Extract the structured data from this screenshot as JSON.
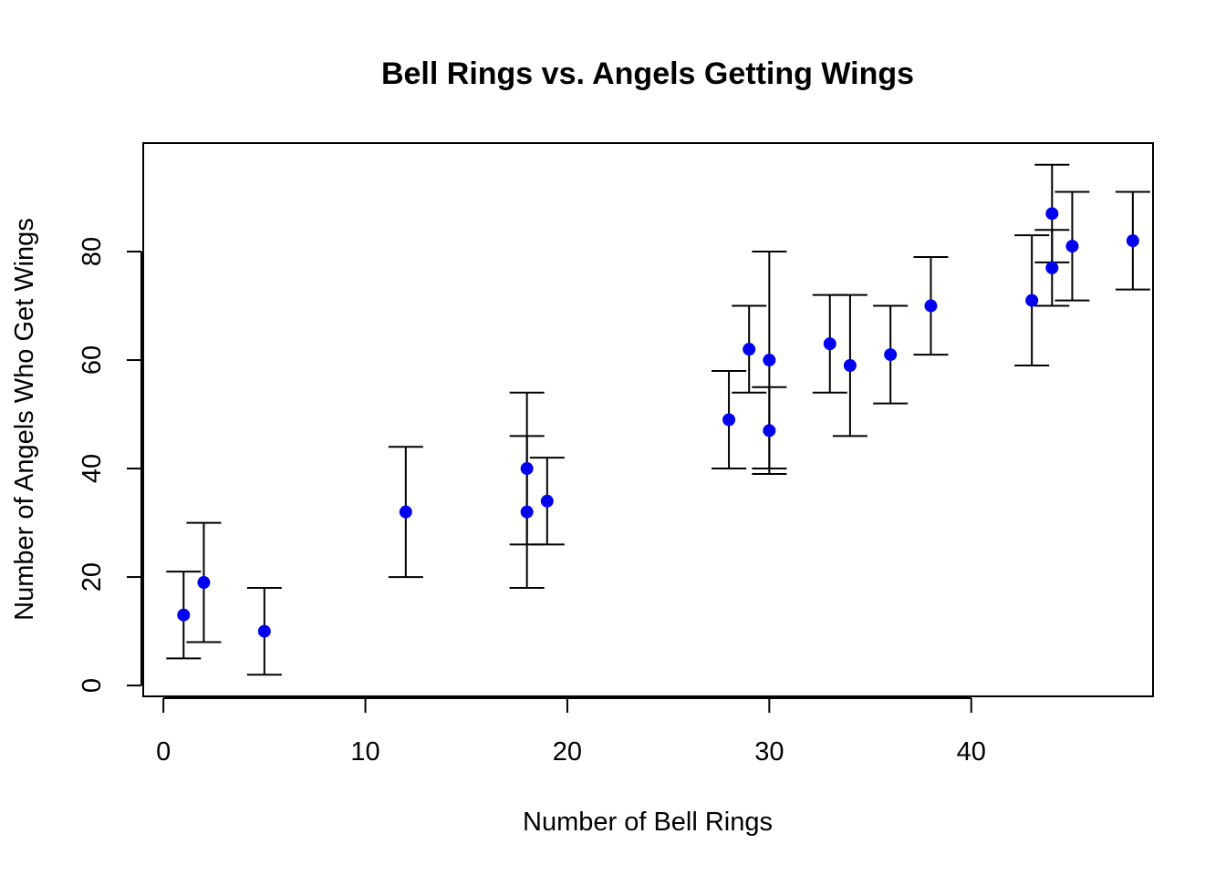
{
  "chart_data": {
    "type": "scatter",
    "title": "Bell Rings vs. Angels Getting Wings",
    "xlabel": "Number of Bell Rings",
    "ylabel": "Number of Angels Who Get Wings",
    "xlim": [
      -1,
      49
    ],
    "ylim": [
      -2,
      100
    ],
    "x_ticks": [
      0,
      10,
      20,
      30,
      40
    ],
    "y_ticks": [
      0,
      20,
      40,
      60,
      80
    ],
    "grid": false,
    "legend": "none",
    "point_color": "#0000ee",
    "error_bar_color": "#000000",
    "points": [
      {
        "x": 1,
        "y": 13,
        "lower": 5,
        "upper": 21
      },
      {
        "x": 2,
        "y": 19,
        "lower": 8,
        "upper": 30
      },
      {
        "x": 5,
        "y": 10,
        "lower": 2,
        "upper": 18
      },
      {
        "x": 12,
        "y": 32,
        "lower": 20,
        "upper": 44
      },
      {
        "x": 18,
        "y": 40,
        "lower": 26,
        "upper": 54
      },
      {
        "x": 18,
        "y": 32,
        "lower": 18,
        "upper": 46
      },
      {
        "x": 19,
        "y": 34,
        "lower": 26,
        "upper": 42
      },
      {
        "x": 28,
        "y": 49,
        "lower": 40,
        "upper": 58
      },
      {
        "x": 29,
        "y": 62,
        "lower": 54,
        "upper": 70
      },
      {
        "x": 30,
        "y": 60,
        "lower": 40,
        "upper": 80
      },
      {
        "x": 30,
        "y": 47,
        "lower": 39,
        "upper": 55
      },
      {
        "x": 33,
        "y": 63,
        "lower": 54,
        "upper": 72
      },
      {
        "x": 34,
        "y": 59,
        "lower": 46,
        "upper": 72
      },
      {
        "x": 36,
        "y": 61,
        "lower": 52,
        "upper": 70
      },
      {
        "x": 38,
        "y": 70,
        "lower": 61,
        "upper": 79
      },
      {
        "x": 43,
        "y": 71,
        "lower": 59,
        "upper": 83
      },
      {
        "x": 44,
        "y": 87,
        "lower": 78,
        "upper": 96
      },
      {
        "x": 44,
        "y": 77,
        "lower": 70,
        "upper": 84
      },
      {
        "x": 45,
        "y": 81,
        "lower": 71,
        "upper": 91
      },
      {
        "x": 48,
        "y": 82,
        "lower": 73,
        "upper": 91
      }
    ]
  }
}
